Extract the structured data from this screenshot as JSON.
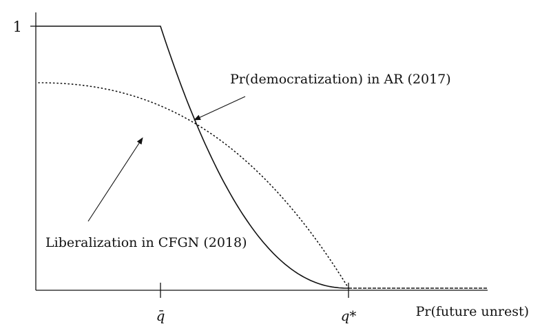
{
  "chart_data": {
    "type": "line",
    "title": "",
    "xlabel": "Pr(future unrest)",
    "ylabel": "",
    "y_ticks": [
      {
        "value": 1,
        "label": "1"
      }
    ],
    "x_ticks": [
      {
        "label": "q̄"
      },
      {
        "label": "q*"
      }
    ],
    "series": [
      {
        "name": "Pr(democratization) in AR (2017)",
        "style": "solid"
      },
      {
        "name": "Liberalization in CFGN (2018)",
        "style": "dotted"
      }
    ],
    "annotations": [
      {
        "text": "Pr(democratization) in AR (2017)"
      },
      {
        "text": "Liberalization in CFGN (2018)"
      }
    ],
    "grid": false,
    "legend": "none"
  },
  "colors": {
    "ink": "#111111",
    "background": "#ffffff"
  }
}
